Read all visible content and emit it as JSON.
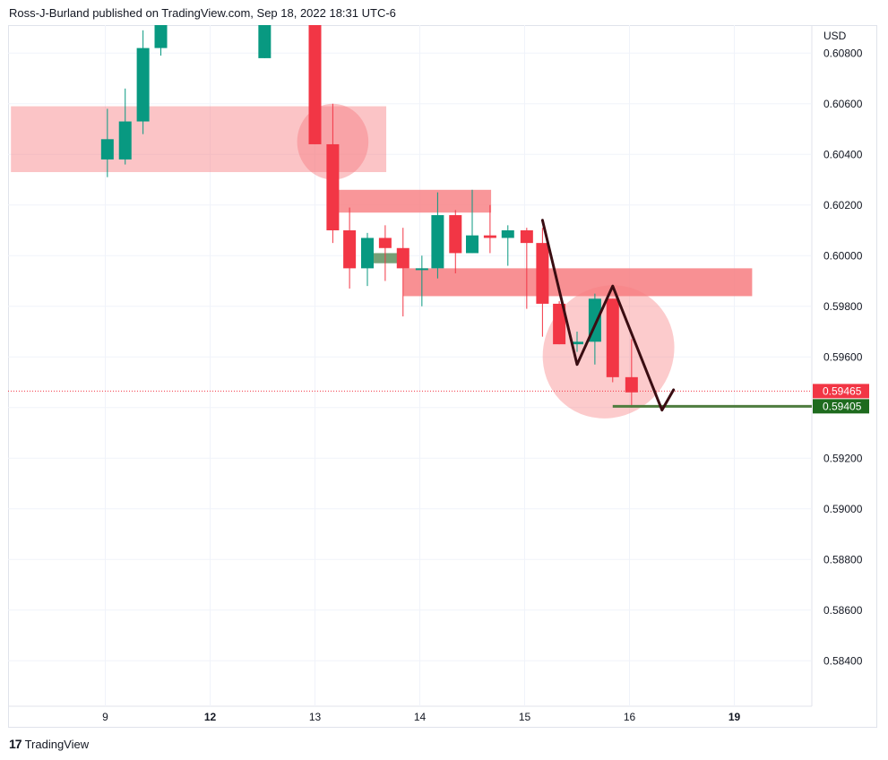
{
  "header": {
    "title": "Ross-J-Burland published on TradingView.com, Sep 18, 2022 18:31 UTC-6"
  },
  "footer": {
    "logo": "17",
    "brand": "TradingView"
  },
  "colors": {
    "up": "#089981",
    "down": "#f23645",
    "zone": "#f77c80",
    "last_price": "#f23645",
    "support": "#1e6b1e"
  },
  "chart_data": {
    "type": "candlestick",
    "currency": "USD",
    "yticks": [
      "0.60800",
      "0.60600",
      "0.60400",
      "0.60200",
      "0.60000",
      "0.59800",
      "0.59600",
      "0.59400",
      "0.59200",
      "0.59000",
      "0.58800",
      "0.58600",
      "0.58400"
    ],
    "xticks": [
      {
        "label": "9",
        "bold": false
      },
      {
        "label": "12",
        "bold": true
      },
      {
        "label": "13",
        "bold": false
      },
      {
        "label": "14",
        "bold": false
      },
      {
        "label": "15",
        "bold": false
      },
      {
        "label": "16",
        "bold": false
      },
      {
        "label": "19",
        "bold": true
      }
    ],
    "ylim": [
      0.583,
      0.609
    ],
    "grid": true,
    "candles": [
      {
        "x": 0.02,
        "o": 0.6038,
        "h": 0.6058,
        "l": 0.6031,
        "c": 0.6046
      },
      {
        "x": 0.19,
        "o": 0.6038,
        "h": 0.6066,
        "l": 0.6036,
        "c": 0.6053
      },
      {
        "x": 0.36,
        "o": 0.6053,
        "h": 0.6089,
        "l": 0.6048,
        "c": 0.6082
      },
      {
        "x": 0.53,
        "o": 0.6082,
        "h": 0.6095,
        "l": 0.6079,
        "c": 0.6092
      },
      {
        "x": 1.52,
        "o": 0.6078,
        "h": 0.6095,
        "l": 0.6078,
        "c": 0.6092
      },
      {
        "x": 2.0,
        "o": 0.6092,
        "h": 0.6095,
        "l": 0.6044,
        "c": 0.6044
      },
      {
        "x": 2.17,
        "o": 0.6044,
        "h": 0.606,
        "l": 0.6005,
        "c": 0.601
      },
      {
        "x": 2.33,
        "o": 0.601,
        "h": 0.6019,
        "l": 0.5987,
        "c": 0.5995
      },
      {
        "x": 2.5,
        "o": 0.5995,
        "h": 0.6009,
        "l": 0.5988,
        "c": 0.6007
      },
      {
        "x": 2.67,
        "o": 0.6007,
        "h": 0.6012,
        "l": 0.599,
        "c": 0.6003
      },
      {
        "x": 2.84,
        "o": 0.6003,
        "h": 0.6011,
        "l": 0.5976,
        "c": 0.5995
      },
      {
        "x": 3.02,
        "o": 0.5995,
        "h": 0.6,
        "l": 0.598,
        "c": 0.5995
      },
      {
        "x": 3.17,
        "o": 0.5995,
        "h": 0.6025,
        "l": 0.5991,
        "c": 0.6016
      },
      {
        "x": 3.34,
        "o": 0.6016,
        "h": 0.6018,
        "l": 0.5993,
        "c": 0.6001
      },
      {
        "x": 3.5,
        "o": 0.6001,
        "h": 0.6026,
        "l": 0.6001,
        "c": 0.6008
      },
      {
        "x": 3.67,
        "o": 0.6008,
        "h": 0.602,
        "l": 0.6001,
        "c": 0.6007
      },
      {
        "x": 3.84,
        "o": 0.6007,
        "h": 0.6012,
        "l": 0.5996,
        "c": 0.601
      },
      {
        "x": 4.02,
        "o": 0.601,
        "h": 0.6011,
        "l": 0.5979,
        "c": 0.6005
      },
      {
        "x": 4.17,
        "o": 0.6005,
        "h": 0.6011,
        "l": 0.5968,
        "c": 0.5981
      },
      {
        "x": 4.33,
        "o": 0.5981,
        "h": 0.5982,
        "l": 0.5965,
        "c": 0.5965
      },
      {
        "x": 4.5,
        "o": 0.5965,
        "h": 0.597,
        "l": 0.5962,
        "c": 0.5966
      },
      {
        "x": 4.67,
        "o": 0.5966,
        "h": 0.5985,
        "l": 0.5957,
        "c": 0.5983
      },
      {
        "x": 4.84,
        "o": 0.5983,
        "h": 0.5983,
        "l": 0.595,
        "c": 0.5952
      },
      {
        "x": 5.02,
        "o": 0.5952,
        "h": 0.5967,
        "l": 0.594,
        "c": 0.5946
      }
    ],
    "zones": [
      {
        "x0": -0.9,
        "x1": 2.68,
        "y0": 0.6033,
        "y1": 0.6059,
        "opacity": 0.45
      },
      {
        "x0": 2.2,
        "x1": 3.68,
        "y0": 0.6017,
        "y1": 0.6026,
        "opacity": 0.8
      },
      {
        "x0": 2.84,
        "x1": 6.17,
        "y0": 0.5984,
        "y1": 0.5995,
        "opacity": 0.85
      }
    ],
    "circles": [
      {
        "cx": 2.17,
        "cy": 0.6045,
        "rx": 0.34,
        "ry": 0.0015,
        "opacity": 0.45
      },
      {
        "cx": 4.8,
        "cy": 0.5962,
        "rx": 0.61,
        "ry": 0.0027,
        "opacity": 0.4,
        "rotate": 40
      }
    ],
    "green_band": {
      "x0": 2.56,
      "x1": 2.84,
      "y0": 0.5997,
      "y1": 0.6001
    },
    "path": [
      [
        4.17,
        0.6014
      ],
      [
        4.5,
        0.5957
      ],
      [
        4.84,
        0.5988
      ],
      [
        5.31,
        0.5939
      ],
      [
        5.42,
        0.5947
      ]
    ],
    "support_line": {
      "x0": 4.84,
      "x1": 7.8,
      "y": 0.59405,
      "label": "0.59405"
    },
    "last_price": {
      "y": 0.59465,
      "label": "0.59465"
    }
  }
}
